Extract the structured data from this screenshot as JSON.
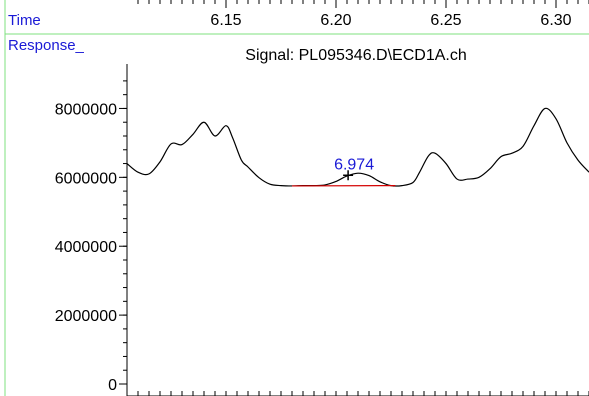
{
  "chart_data": {
    "type": "line",
    "title": "Signal: PL095346.D\\ECD1A.ch",
    "xlabel": "Time",
    "ylabel": "Response_",
    "xlim": [
      6.105,
      6.315
    ],
    "ylim": [
      0,
      9000000
    ],
    "x_ticks": [
      6.15,
      6.2,
      6.25,
      6.3
    ],
    "x_tick_labels": [
      "6.15",
      "6.20",
      "6.25",
      "6.30"
    ],
    "y_ticks": [
      0,
      2000000,
      4000000,
      6000000,
      8000000
    ],
    "y_tick_labels": [
      "0",
      "2000000",
      "4000000",
      "6000000",
      "8000000"
    ],
    "series": [
      {
        "x": [
          6.105,
          6.11,
          6.115,
          6.12,
          6.125,
          6.13,
          6.135,
          6.14,
          6.145,
          6.15,
          6.153,
          6.157,
          6.16,
          6.165,
          6.17,
          6.175,
          6.18,
          6.185,
          6.19,
          6.195,
          6.2,
          6.205,
          6.21,
          6.215,
          6.22,
          6.225,
          6.23,
          6.235,
          6.238,
          6.242,
          6.245,
          6.25,
          6.255,
          6.26,
          6.265,
          6.27,
          6.275,
          6.28,
          6.285,
          6.29,
          6.295,
          6.3,
          6.305,
          6.31,
          6.315
        ],
        "y": [
          6400000,
          6150000,
          6100000,
          6450000,
          6970000,
          6950000,
          7250000,
          7600000,
          7200000,
          7500000,
          7150000,
          6500000,
          6300000,
          5990000,
          5800000,
          5760000,
          5750000,
          5760000,
          5760000,
          5780000,
          5880000,
          6040000,
          6120000,
          6050000,
          5870000,
          5760000,
          5760000,
          5850000,
          6150000,
          6620000,
          6700000,
          6400000,
          5950000,
          5950000,
          6000000,
          6250000,
          6600000,
          6700000,
          6900000,
          7500000,
          8000000,
          7700000,
          7000000,
          6500000,
          6150000
        ]
      }
    ],
    "integration_baseline": {
      "x": [
        6.18,
        6.227
      ],
      "y": [
        5750000,
        5760000
      ]
    },
    "peak_marker": {
      "label": "6.974",
      "x": 6.2055,
      "y": 6060000
    }
  },
  "colors": {
    "signal": "#000000",
    "baseline": "#d40000",
    "axis_labels": "#1a1ad6",
    "frame": "#7fe07f"
  }
}
